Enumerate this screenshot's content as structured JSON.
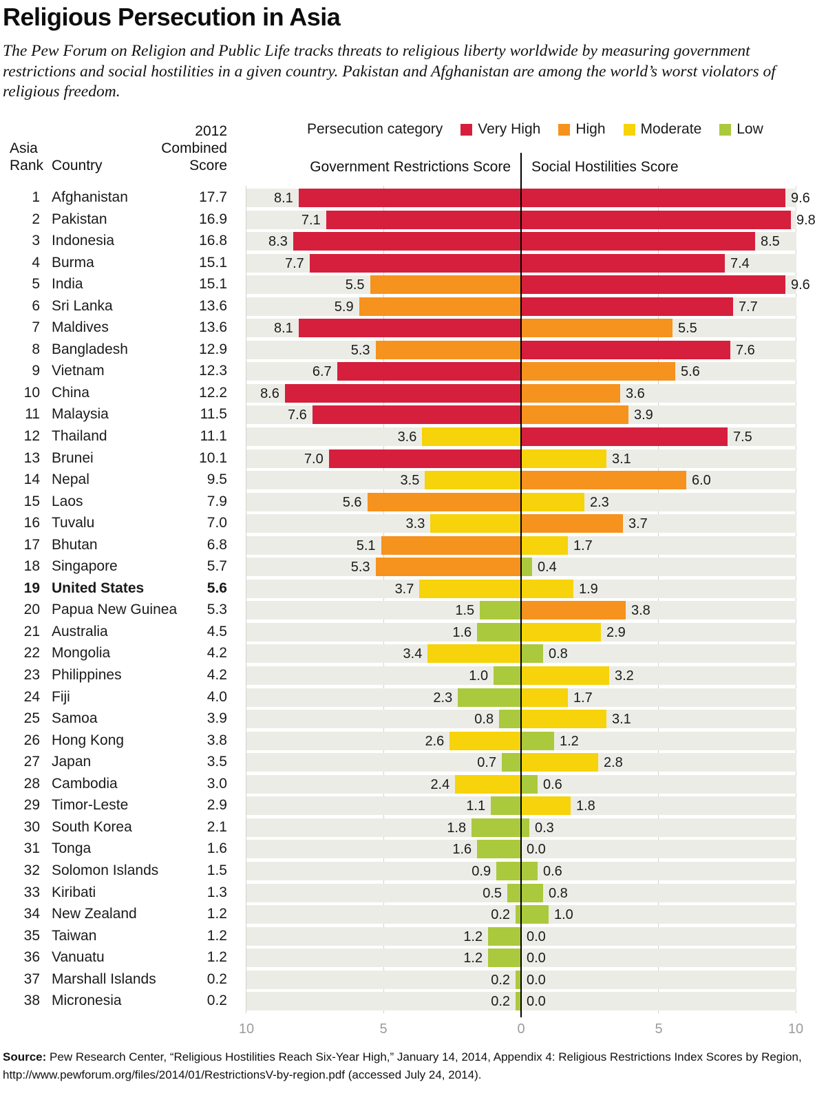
{
  "title": "Religious Persecution in Asia",
  "subtitle": "The Pew Forum on Religion and Public Life tracks threats to religious liberty worldwide by measuring government restrictions and social hostilities in a given country. Pakistan and Afghanistan are among the world’s worst violators of religious freedom.",
  "legend": {
    "label": "Persecution category",
    "items": [
      {
        "key": "very_high",
        "label": "Very High"
      },
      {
        "key": "high",
        "label": "High"
      },
      {
        "key": "moderate",
        "label": "Moderate"
      },
      {
        "key": "low",
        "label": "Low"
      }
    ]
  },
  "colors": {
    "very_high": "#d51f3c",
    "high": "#f6921e",
    "moderate": "#f6d30a",
    "low": "#abc93c",
    "track": "#ecece7"
  },
  "columns": {
    "rank_line1": "Asia",
    "rank_line2": "Rank",
    "country": "Country",
    "combined_line1": "2012",
    "combined_line2": "Combined",
    "combined_line3": "Score",
    "gov": "Government Restrictions Score",
    "soc": "Social Hostilities Score"
  },
  "axis": {
    "ticks": [
      "10",
      "5",
      "0",
      "5",
      "10"
    ]
  },
  "chart_data": {
    "type": "bar",
    "orientation": "diverging-horizontal",
    "xlim_left": [
      10,
      0
    ],
    "xlim_right": [
      0,
      10
    ],
    "series": [
      {
        "name": "Government Restrictions Score",
        "side": "left"
      },
      {
        "name": "Social Hostilities Score",
        "side": "right"
      }
    ],
    "rows": [
      {
        "rank": "1",
        "country": "Afghanistan",
        "combined": "17.7",
        "gov": "8.1",
        "gov_cat": "very_high",
        "soc": "9.6",
        "soc_cat": "very_high",
        "bold": false
      },
      {
        "rank": "2",
        "country": "Pakistan",
        "combined": "16.9",
        "gov": "7.1",
        "gov_cat": "very_high",
        "soc": "9.8",
        "soc_cat": "very_high",
        "bold": false
      },
      {
        "rank": "3",
        "country": "Indonesia",
        "combined": "16.8",
        "gov": "8.3",
        "gov_cat": "very_high",
        "soc": "8.5",
        "soc_cat": "very_high",
        "bold": false
      },
      {
        "rank": "4",
        "country": "Burma",
        "combined": "15.1",
        "gov": "7.7",
        "gov_cat": "very_high",
        "soc": "7.4",
        "soc_cat": "very_high",
        "bold": false
      },
      {
        "rank": "5",
        "country": "India",
        "combined": "15.1",
        "gov": "5.5",
        "gov_cat": "high",
        "soc": "9.6",
        "soc_cat": "very_high",
        "bold": false
      },
      {
        "rank": "6",
        "country": "Sri Lanka",
        "combined": "13.6",
        "gov": "5.9",
        "gov_cat": "high",
        "soc": "7.7",
        "soc_cat": "very_high",
        "bold": false
      },
      {
        "rank": "7",
        "country": "Maldives",
        "combined": "13.6",
        "gov": "8.1",
        "gov_cat": "very_high",
        "soc": "5.5",
        "soc_cat": "high",
        "bold": false
      },
      {
        "rank": "8",
        "country": "Bangladesh",
        "combined": "12.9",
        "gov": "5.3",
        "gov_cat": "high",
        "soc": "7.6",
        "soc_cat": "very_high",
        "bold": false
      },
      {
        "rank": "9",
        "country": "Vietnam",
        "combined": "12.3",
        "gov": "6.7",
        "gov_cat": "very_high",
        "soc": "5.6",
        "soc_cat": "high",
        "bold": false
      },
      {
        "rank": "10",
        "country": "China",
        "combined": "12.2",
        "gov": "8.6",
        "gov_cat": "very_high",
        "soc": "3.6",
        "soc_cat": "high",
        "bold": false
      },
      {
        "rank": "11",
        "country": "Malaysia",
        "combined": "11.5",
        "gov": "7.6",
        "gov_cat": "very_high",
        "soc": "3.9",
        "soc_cat": "high",
        "bold": false
      },
      {
        "rank": "12",
        "country": "Thailand",
        "combined": "11.1",
        "gov": "3.6",
        "gov_cat": "moderate",
        "soc": "7.5",
        "soc_cat": "very_high",
        "bold": false
      },
      {
        "rank": "13",
        "country": "Brunei",
        "combined": "10.1",
        "gov": "7.0",
        "gov_cat": "very_high",
        "soc": "3.1",
        "soc_cat": "moderate",
        "bold": false
      },
      {
        "rank": "14",
        "country": "Nepal",
        "combined": "9.5",
        "gov": "3.5",
        "gov_cat": "moderate",
        "soc": "6.0",
        "soc_cat": "high",
        "bold": false
      },
      {
        "rank": "15",
        "country": "Laos",
        "combined": "7.9",
        "gov": "5.6",
        "gov_cat": "high",
        "soc": "2.3",
        "soc_cat": "moderate",
        "bold": false
      },
      {
        "rank": "16",
        "country": "Tuvalu",
        "combined": "7.0",
        "gov": "3.3",
        "gov_cat": "moderate",
        "soc": "3.7",
        "soc_cat": "high",
        "bold": false
      },
      {
        "rank": "17",
        "country": "Bhutan",
        "combined": "6.8",
        "gov": "5.1",
        "gov_cat": "high",
        "soc": "1.7",
        "soc_cat": "moderate",
        "bold": false
      },
      {
        "rank": "18",
        "country": "Singapore",
        "combined": "5.7",
        "gov": "5.3",
        "gov_cat": "high",
        "soc": "0.4",
        "soc_cat": "low",
        "bold": false
      },
      {
        "rank": "19",
        "country": "United States",
        "combined": "5.6",
        "gov": "3.7",
        "gov_cat": "moderate",
        "soc": "1.9",
        "soc_cat": "moderate",
        "bold": true
      },
      {
        "rank": "20",
        "country": "Papua New Guinea",
        "combined": "5.3",
        "gov": "1.5",
        "gov_cat": "low",
        "soc": "3.8",
        "soc_cat": "high",
        "bold": false
      },
      {
        "rank": "21",
        "country": "Australia",
        "combined": "4.5",
        "gov": "1.6",
        "gov_cat": "low",
        "soc": "2.9",
        "soc_cat": "moderate",
        "bold": false
      },
      {
        "rank": "22",
        "country": "Mongolia",
        "combined": "4.2",
        "gov": "3.4",
        "gov_cat": "moderate",
        "soc": "0.8",
        "soc_cat": "low",
        "bold": false
      },
      {
        "rank": "23",
        "country": "Philippines",
        "combined": "4.2",
        "gov": "1.0",
        "gov_cat": "low",
        "soc": "3.2",
        "soc_cat": "moderate",
        "bold": false
      },
      {
        "rank": "24",
        "country": "Fiji",
        "combined": "4.0",
        "gov": "2.3",
        "gov_cat": "low",
        "soc": "1.7",
        "soc_cat": "moderate",
        "bold": false
      },
      {
        "rank": "25",
        "country": "Samoa",
        "combined": "3.9",
        "gov": "0.8",
        "gov_cat": "low",
        "soc": "3.1",
        "soc_cat": "moderate",
        "bold": false
      },
      {
        "rank": "26",
        "country": "Hong Kong",
        "combined": "3.8",
        "gov": "2.6",
        "gov_cat": "moderate",
        "soc": "1.2",
        "soc_cat": "low",
        "bold": false
      },
      {
        "rank": "27",
        "country": "Japan",
        "combined": "3.5",
        "gov": "0.7",
        "gov_cat": "low",
        "soc": "2.8",
        "soc_cat": "moderate",
        "bold": false
      },
      {
        "rank": "28",
        "country": "Cambodia",
        "combined": "3.0",
        "gov": "2.4",
        "gov_cat": "moderate",
        "soc": "0.6",
        "soc_cat": "low",
        "bold": false
      },
      {
        "rank": "29",
        "country": "Timor-Leste",
        "combined": "2.9",
        "gov": "1.1",
        "gov_cat": "low",
        "soc": "1.8",
        "soc_cat": "moderate",
        "bold": false
      },
      {
        "rank": "30",
        "country": "South Korea",
        "combined": "2.1",
        "gov": "1.8",
        "gov_cat": "low",
        "soc": "0.3",
        "soc_cat": "low",
        "bold": false
      },
      {
        "rank": "31",
        "country": "Tonga",
        "combined": "1.6",
        "gov": "1.6",
        "gov_cat": "low",
        "soc": "0.0",
        "soc_cat": "none",
        "bold": false
      },
      {
        "rank": "32",
        "country": "Solomon Islands",
        "combined": "1.5",
        "gov": "0.9",
        "gov_cat": "low",
        "soc": "0.6",
        "soc_cat": "low",
        "bold": false
      },
      {
        "rank": "33",
        "country": "Kiribati",
        "combined": "1.3",
        "gov": "0.5",
        "gov_cat": "low",
        "soc": "0.8",
        "soc_cat": "low",
        "bold": false
      },
      {
        "rank": "34",
        "country": "New Zealand",
        "combined": "1.2",
        "gov": "0.2",
        "gov_cat": "low",
        "soc": "1.0",
        "soc_cat": "low",
        "bold": false
      },
      {
        "rank": "35",
        "country": "Taiwan",
        "combined": "1.2",
        "gov": "1.2",
        "gov_cat": "low",
        "soc": "0.0",
        "soc_cat": "none",
        "bold": false
      },
      {
        "rank": "36",
        "country": "Vanuatu",
        "combined": "1.2",
        "gov": "1.2",
        "gov_cat": "low",
        "soc": "0.0",
        "soc_cat": "none",
        "bold": false
      },
      {
        "rank": "37",
        "country": "Marshall Islands",
        "combined": "0.2",
        "gov": "0.2",
        "gov_cat": "low",
        "soc": "0.0",
        "soc_cat": "none",
        "bold": false
      },
      {
        "rank": "38",
        "country": "Micronesia",
        "combined": "0.2",
        "gov": "0.2",
        "gov_cat": "low",
        "soc": "0.0",
        "soc_cat": "none",
        "bold": false
      }
    ]
  },
  "footer": {
    "source_label": "Source:",
    "source_text": " Pew Research Center, “Religious Hostilities Reach Six-Year High,” January 14, 2014, Appendix 4: Religious Restrictions Index Scores by Region, http://www.pewforum.org/files/2014/01/RestrictionsV-by-region.pdf (accessed July 24, 2014)."
  }
}
